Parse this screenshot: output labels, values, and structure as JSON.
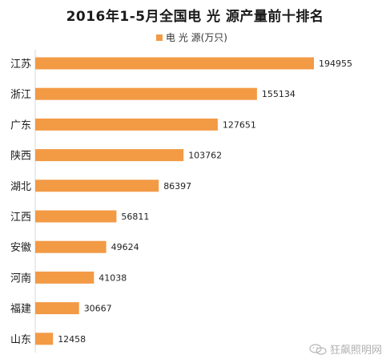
{
  "chart_data": {
    "type": "bar",
    "orientation": "horizontal",
    "title": "2016年1-5月全国电 光 源产量前十排名",
    "legend_position": "top",
    "categories": [
      "江苏",
      "浙江",
      "广东",
      "陕西",
      "湖北",
      "江西",
      "安徽",
      "河南",
      "福建",
      "山东"
    ],
    "series": [
      {
        "name": "电 光 源(万只)",
        "color": "#f39a45",
        "values": [
          194955,
          155134,
          127651,
          103762,
          86397,
          56811,
          49624,
          41038,
          30667,
          12458
        ]
      }
    ],
    "xlim": [
      0,
      194955
    ],
    "grid": false
  },
  "watermark": {
    "text": "狂飙照明网",
    "icon": "wechat-icon"
  }
}
